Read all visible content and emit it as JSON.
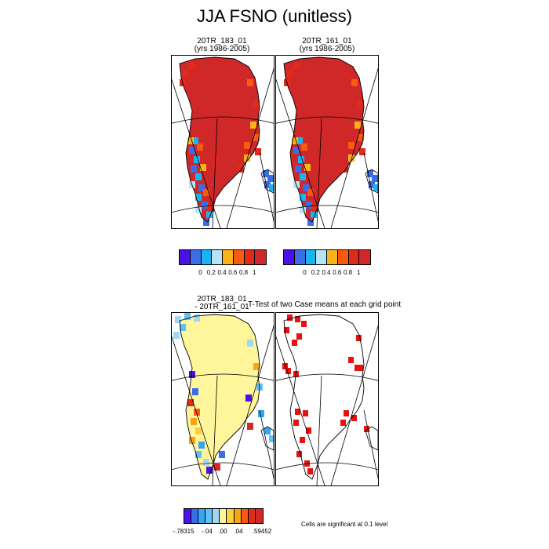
{
  "title": "JJA FSNO (unitless)",
  "panels": {
    "p1": {
      "line1": "20TR_183_01",
      "line2": "(yrs 1986-2005)"
    },
    "p2": {
      "line1": "20TR_161_01",
      "line2": "(yrs 1986-2005)"
    },
    "p3": {
      "line1": "20TR_183_01",
      "line2": "- 20TR_161_01"
    },
    "p4": {
      "line1": "T-Test of two Case means at each grid point"
    }
  },
  "colors": {
    "scale1": [
      "#4a12e8",
      "#3a6ee8",
      "#1ab4f0",
      "#b8e2f6",
      "#f8b418",
      "#f85a10",
      "#e02a1a",
      "#d02828"
    ],
    "scale2": [
      "#4a12e8",
      "#3a6ee8",
      "#38a4f4",
      "#62c0f8",
      "#a0d8f4",
      "#fff59a",
      "#f8d040",
      "#f8a418",
      "#f85a10",
      "#e02a1a",
      "#d02828"
    ],
    "significant": "#e81010"
  },
  "legend1": {
    "ticks": [
      "0",
      "0.2",
      "0.4",
      "0.6",
      "0.8",
      "1"
    ]
  },
  "legend2": {
    "ticks": [
      "-.78315",
      "-.04",
      ".00",
      ".04",
      ".59452"
    ]
  },
  "footnote": "Cells are significant at 0.1 level",
  "chart_data": {
    "type": "heatmap",
    "title": "JJA FSNO (unitless)",
    "variable": "FSNO",
    "season": "JJA",
    "maps": [
      {
        "name": "20TR_183_01",
        "years": "1986-2005",
        "levels": [
          0,
          0.2,
          0.4,
          0.6,
          0.8,
          1
        ],
        "ice_sheet_interior": 1.0,
        "margin_west": "0 - 0.6",
        "margin_east": "0.8 - 1"
      },
      {
        "name": "20TR_161_01",
        "years": "1986-2005",
        "levels": [
          0,
          0.2,
          0.4,
          0.6,
          0.8,
          1
        ],
        "ice_sheet_interior": 1.0,
        "margin_west": "0 - 0.6",
        "margin_east": "0.8 - 1"
      },
      {
        "name": "20TR_183_01 - 20TR_161_01",
        "levels": [
          -0.78315,
          -0.04,
          0.0,
          0.04,
          0.59452
        ],
        "ice_sheet_interior": 0.0
      },
      {
        "name": "T-Test of two Case means at each grid point",
        "significance_level": 0.1
      }
    ]
  }
}
